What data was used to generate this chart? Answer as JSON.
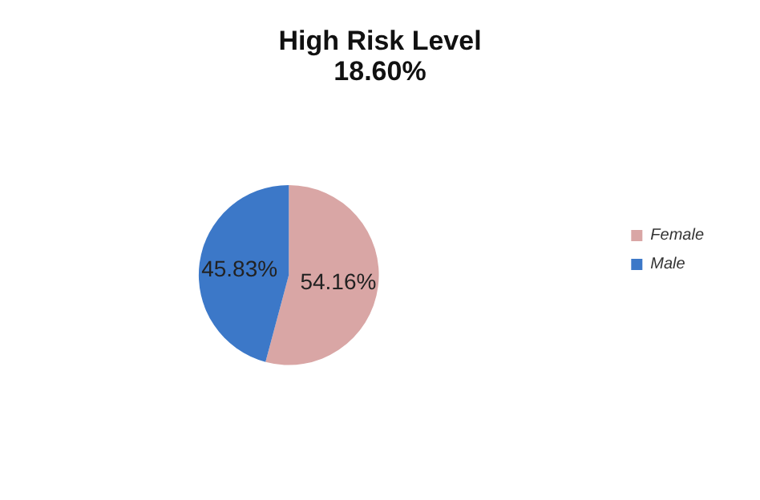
{
  "chart_data": {
    "type": "pie",
    "title": "High Risk Level",
    "subtitle": "18.60%",
    "categories": [
      "Female",
      "Male"
    ],
    "values": [
      54.16,
      45.83
    ],
    "value_labels": [
      "54.16%",
      "45.83%"
    ],
    "colors": [
      "#d9a6a5",
      "#3c78c8"
    ],
    "legend": "right"
  }
}
